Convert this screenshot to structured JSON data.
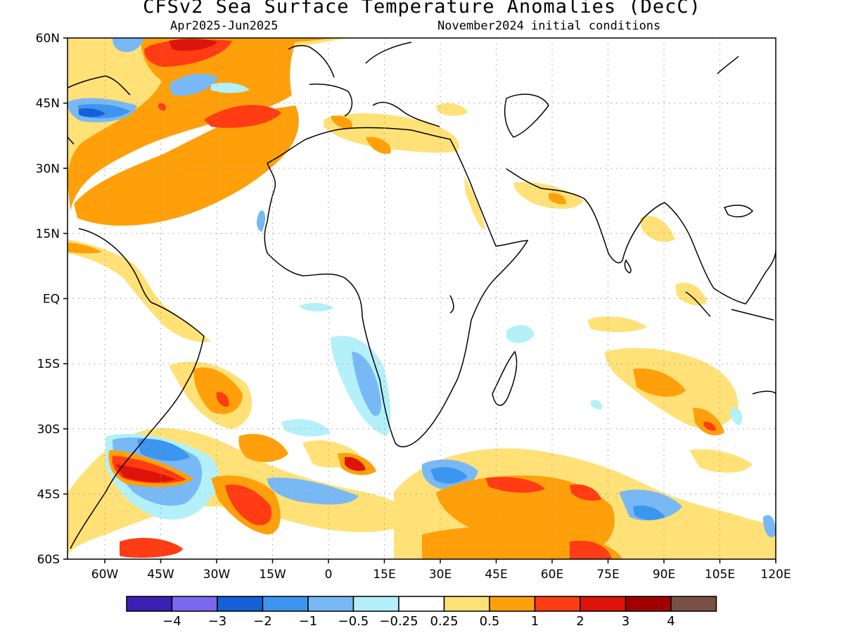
{
  "title": "CFSv2 Sea Surface Temperature Anomalies (DecC)",
  "subtitle_left": "Apr2025-Jun2025",
  "subtitle_right": "November2024 initial conditions",
  "map": {
    "lon_range": [
      -70,
      120
    ],
    "lat_range": [
      -60,
      60
    ],
    "x_ticks": [
      "60W",
      "45W",
      "30W",
      "15W",
      "0",
      "15E",
      "30E",
      "45E",
      "60E",
      "75E",
      "90E",
      "105E",
      "120E"
    ],
    "y_ticks": [
      "60N",
      "45N",
      "30N",
      "15N",
      "EQ",
      "15S",
      "30S",
      "45S",
      "60S"
    ],
    "gridlines": true
  },
  "colorbar": {
    "colors": [
      "#3a1fb4",
      "#7b68ee",
      "#1560d6",
      "#3c96f0",
      "#78b9f5",
      "#b4f0fa",
      "#ffffff",
      "#ffe178",
      "#ffa00a",
      "#ff3c14",
      "#dc140a",
      "#a00000",
      "#7a5045"
    ],
    "labels": [
      "−4",
      "−3",
      "−2",
      "−1",
      "−0.5",
      "−0.25",
      "0.25",
      "0.5",
      "1",
      "2",
      "3",
      "4"
    ]
  }
}
